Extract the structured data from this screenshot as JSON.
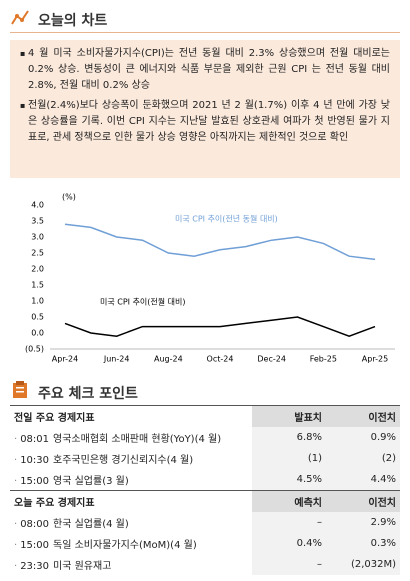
{
  "header": {
    "title": "오늘의 차트"
  },
  "bullets": [
    "4 월 미국 소비자물가지수(CPI)는 전년 동월 대비 2.3% 상승했으며 전월 대비로는 0.2% 상승. 변동성이 큰 에너지와 식품 부문을 제외한 근원 CPI 는 전년 동월 대비 2.8%, 전월 대비 0.2% 상승",
    "전월(2.4%)보다 상승폭이 둔화했으며 2021 년 2 월(1.7%) 이후 4 년 만에 가장 낮은 상승률을 기록. 이번 CPI 지수는 지난달 발효된 상호관세 여파가 첫 반영된 물가 지표로, 관세 정책으로 인한 물가 상승 영향은 아직까지는 제한적인 것으로 확인"
  ],
  "chart_data": {
    "type": "line",
    "ylabel": "(%)",
    "categories": [
      "Apr-24",
      null,
      "Jun-24",
      null,
      "Aug-24",
      null,
      "Oct-24",
      null,
      "Dec-24",
      null,
      "Feb-25",
      null,
      "Apr-25"
    ],
    "series": [
      {
        "name": "미국 CPI 추이(전년 동월 대비)",
        "color": "#6f9fd6",
        "values": [
          3.4,
          3.3,
          3.0,
          2.9,
          2.5,
          2.4,
          2.6,
          2.7,
          2.9,
          3.0,
          2.8,
          2.4,
          2.3
        ]
      },
      {
        "name": "미국 CPI 추이(전월 대비)",
        "color": "#000000",
        "values": [
          0.3,
          0.0,
          -0.1,
          0.2,
          0.2,
          0.2,
          0.2,
          0.3,
          0.4,
          0.5,
          0.2,
          -0.1,
          0.2
        ]
      }
    ],
    "ylim": [
      -0.5,
      4
    ],
    "yticks": [
      {
        "value": 4,
        "label": "4.0"
      },
      3.5,
      {
        "value": 3,
        "label": "3.0"
      },
      2.5,
      {
        "value": 2,
        "label": "2.0"
      },
      1.5,
      {
        "value": 1,
        "label": "1.0"
      },
      0.5,
      {
        "value": 0,
        "label": "0.0"
      },
      {
        "value": -0.5,
        "label": "(0.5)"
      }
    ],
    "grid": false
  },
  "section_title": "주요 체크 포인트",
  "tables": [
    {
      "title": "전일 주요 경제지표",
      "columns": [
        "발표치",
        "이전치"
      ],
      "rows": [
        {
          "time": "08:01",
          "item": "영국소매협회 소매판매 현황(YoY)(4 월)",
          "values": [
            "6.8%",
            "0.9%"
          ]
        },
        {
          "time": "10:30",
          "item": "호주국민은행 경기신뢰지수(4 월)",
          "values": [
            "(1)",
            "(2)"
          ]
        },
        {
          "time": "15:00",
          "item": "영국 실업률(3 월)",
          "values": [
            "4.5%",
            "4.4%"
          ]
        }
      ]
    },
    {
      "title": "오늘 주요 경제지표",
      "columns": [
        "예측치",
        "이전치"
      ],
      "rows": [
        {
          "time": "08:00",
          "item": "한국 실업률(4 월)",
          "values": [
            "–",
            "2.9%"
          ]
        },
        {
          "time": "15:00",
          "item": "독일 소비자물가지수(MoM)(4 월)",
          "values": [
            "0.4%",
            "0.3%"
          ]
        },
        {
          "time": "23:30",
          "item": "미국 원유재고",
          "values": [
            "–",
            "(2,032M)"
          ]
        }
      ]
    }
  ]
}
